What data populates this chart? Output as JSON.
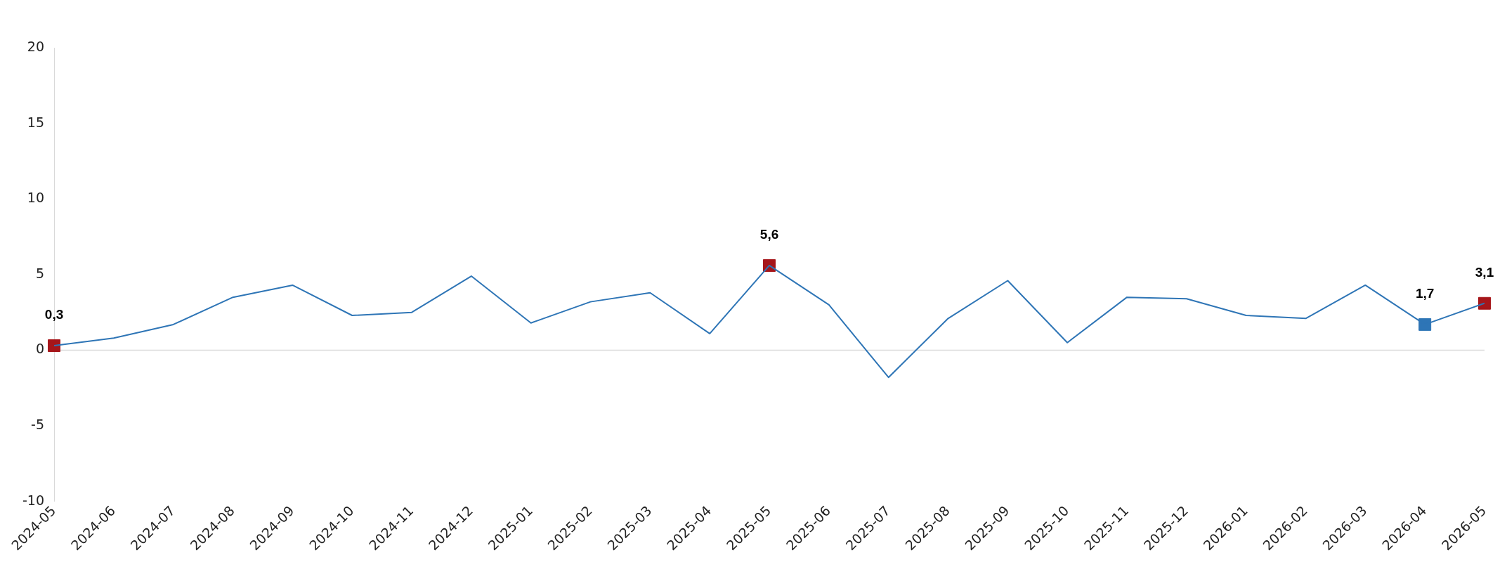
{
  "chart_data": {
    "type": "line",
    "x": [
      "2024-05",
      "2024-06",
      "2024-07",
      "2024-08",
      "2024-09",
      "2024-10",
      "2024-11",
      "2024-12",
      "2025-01",
      "2025-02",
      "2025-03",
      "2025-04",
      "2025-05",
      "2025-06",
      "2025-07",
      "2025-08",
      "2025-09",
      "2025-10",
      "2025-11",
      "2025-12",
      "2026-01",
      "2026-02",
      "2026-03",
      "2026-04",
      "2026-05"
    ],
    "xlim": [
      "2024-05",
      "2026-05"
    ],
    "xticks": [
      "2024-05",
      "2024-06",
      "2024-07",
      "2024-08",
      "2024-09",
      "2024-10",
      "2024-11",
      "2024-12",
      "2025-01",
      "2025-02",
      "2025-03",
      "2025-04",
      "2025-05",
      "2025-06",
      "2025-07",
      "2025-08",
      "2025-09",
      "2025-10",
      "2025-11",
      "2025-12",
      "2026-01",
      "2026-02",
      "2026-03",
      "2026-04",
      "2026-05"
    ],
    "series": [
      {
        "color": "#2e75b6",
        "marker": "none",
        "values": [
          0.3,
          0.8,
          1.7,
          3.5,
          4.3,
          2.3,
          2.5,
          4.9,
          1.8,
          3.2,
          3.8,
          1.1,
          5.6,
          3.0,
          -1.8,
          2.1,
          4.6,
          0.5,
          3.5,
          3.4,
          2.3,
          2.1,
          4.3,
          1.7,
          3.1
        ]
      },
      {
        "type": "scatter",
        "color": "#a6161a",
        "marker": "square",
        "x": [
          "2024-05",
          "2025-05",
          "2026-05"
        ],
        "values": [
          0.3,
          5.6,
          3.1
        ],
        "value_labels": [
          "0,3",
          "5,6",
          "3,1"
        ]
      },
      {
        "type": "scatter",
        "color": "#2e75b6",
        "marker": "square",
        "x": [
          "2026-04"
        ],
        "values": [
          1.7
        ],
        "value_labels": [
          "1,7"
        ]
      }
    ],
    "ylim": [
      -10,
      20
    ],
    "yticks": [
      -10,
      -5,
      0,
      5,
      10,
      15,
      20
    ],
    "ref_lines": [
      {
        "axis": "y",
        "value": 0,
        "color": "#d9d9d9"
      }
    ],
    "grid": false,
    "legend": false
  }
}
